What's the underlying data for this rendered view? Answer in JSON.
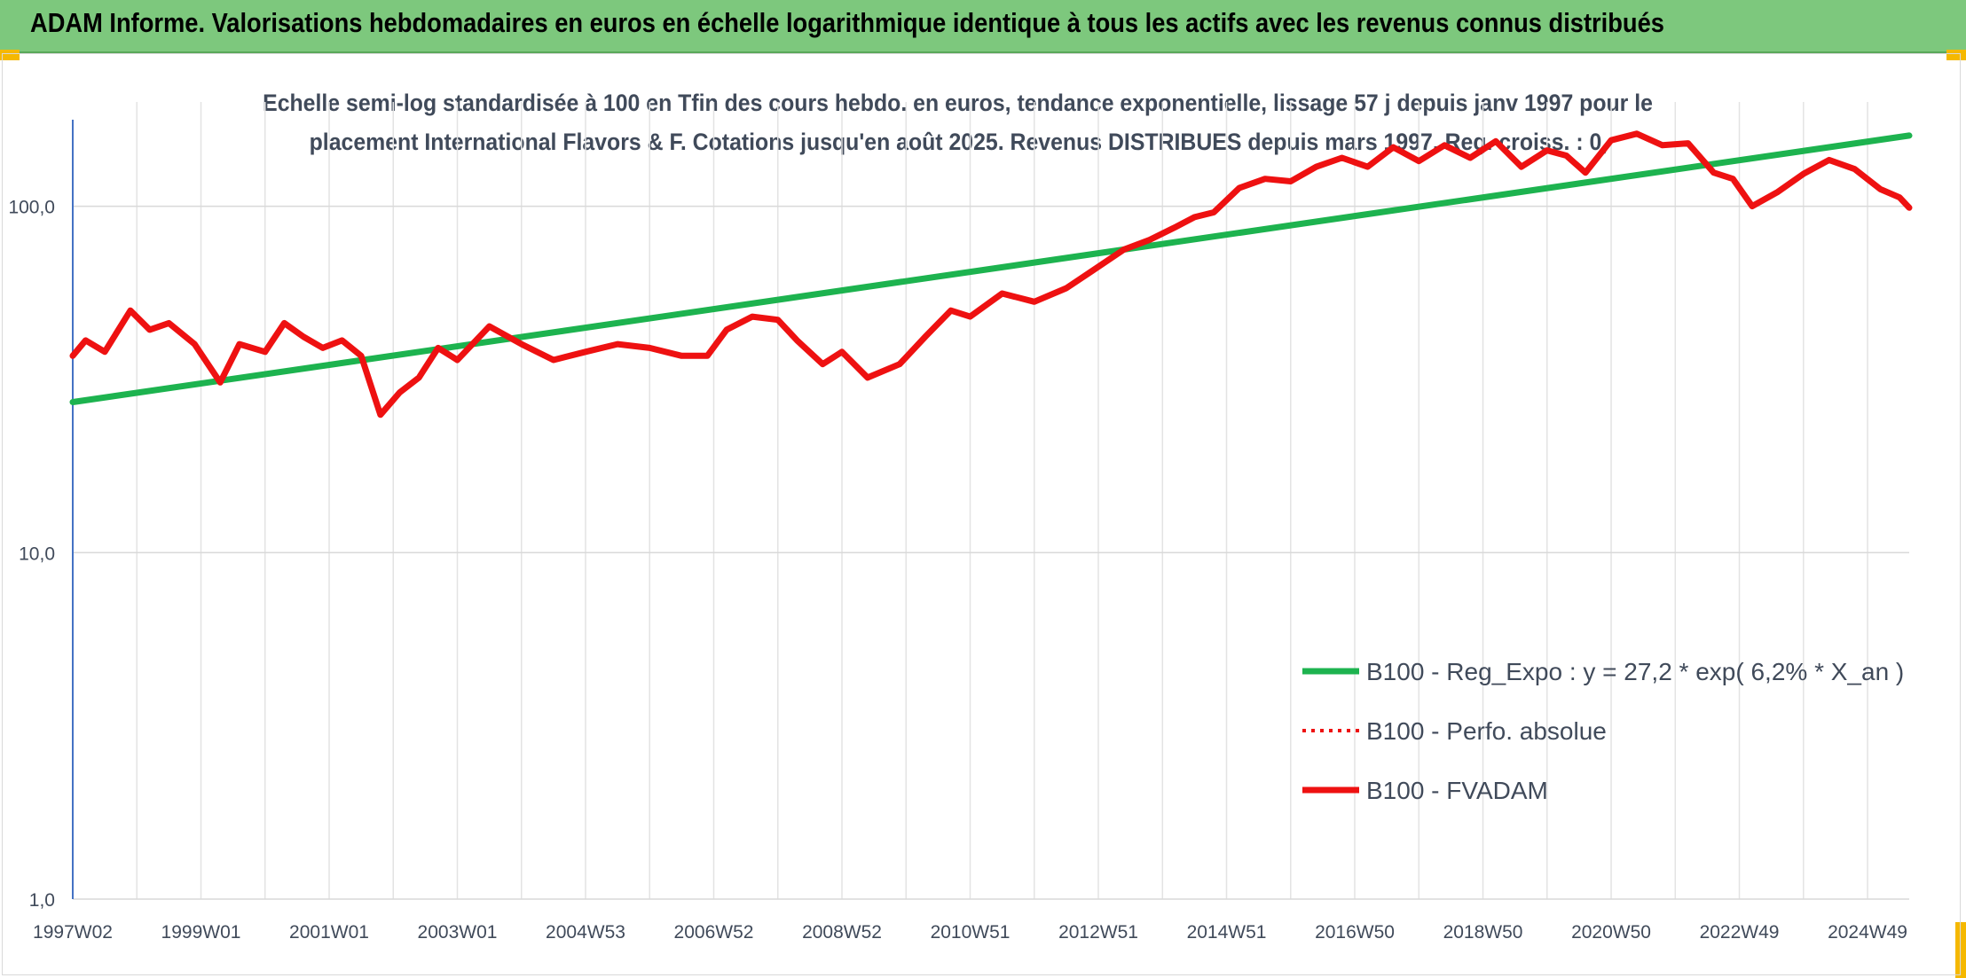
{
  "header": {
    "title": "ADAM Informe. Valorisations hebdomadaires en euros en échelle logarithmique identique à tous les actifs avec les revenus connus distribués"
  },
  "chart_data": {
    "type": "line",
    "title_line1": "Echelle semi-log standardisée à 100 en Tfin des cours hebdo. en euros, tendance exponentielle, lissage 57 j depuis janv 1997 pour le",
    "title_line2": "placement International Flavors & F. Cotations jusqu'en août 2025. Revenus DISTRIBUES depuis mars 1997. Reg. croiss. : 0,",
    "y_scale": "log",
    "ylim": [
      1,
      200
    ],
    "xlim": [
      1997.0,
      2025.65
    ],
    "y_ticks": [
      {
        "value": 1,
        "label": "1,0"
      },
      {
        "value": 10,
        "label": "10,0"
      },
      {
        "value": 100,
        "label": "100,0"
      }
    ],
    "x_ticks": [
      {
        "value": 1997.0,
        "label": "1997W02"
      },
      {
        "value": 1999.0,
        "label": "1999W01"
      },
      {
        "value": 2001.0,
        "label": "2001W01"
      },
      {
        "value": 2003.0,
        "label": "2003W01"
      },
      {
        "value": 2005.0,
        "label": "2004W53"
      },
      {
        "value": 2007.0,
        "label": "2006W52"
      },
      {
        "value": 2009.0,
        "label": "2008W52"
      },
      {
        "value": 2011.0,
        "label": "2010W51"
      },
      {
        "value": 2013.0,
        "label": "2012W51"
      },
      {
        "value": 2015.0,
        "label": "2014W51"
      },
      {
        "value": 2017.0,
        "label": "2016W50"
      },
      {
        "value": 2019.0,
        "label": "2018W50"
      },
      {
        "value": 2021.0,
        "label": "2020W50"
      },
      {
        "value": 2023.0,
        "label": "2022W49"
      },
      {
        "value": 2025.0,
        "label": "2024W49"
      }
    ],
    "grid": true,
    "legend_position": "bottom-right",
    "series": [
      {
        "name": "B100 - Reg_Expo : y = 27,2 * exp( 6,2% *  X_an )",
        "color": "#1db34f",
        "style": "solid",
        "x": [
          1997.0,
          2025.65
        ],
        "y": [
          27.2,
          160
        ]
      },
      {
        "name": "B100 - Perfo. absolue",
        "color": "#ee1111",
        "style": "dotted",
        "x": [],
        "y": []
      },
      {
        "name": "B100 - FVADAM",
        "color": "#ee1111",
        "style": "solid",
        "x": [
          1997.0,
          1997.2,
          1997.5,
          1997.9,
          1998.2,
          1998.5,
          1998.9,
          1999.3,
          1999.6,
          2000.0,
          2000.3,
          2000.6,
          2000.9,
          2001.2,
          2001.5,
          2001.8,
          2002.1,
          2002.4,
          2002.7,
          2003.0,
          2003.5,
          2004.0,
          2004.5,
          2005.0,
          2005.5,
          2006.0,
          2006.5,
          2006.9,
          2007.2,
          2007.6,
          2008.0,
          2008.3,
          2008.7,
          2009.0,
          2009.4,
          2009.9,
          2010.3,
          2010.7,
          2011.0,
          2011.5,
          2012.0,
          2012.5,
          2012.9,
          2013.4,
          2013.8,
          2014.2,
          2014.5,
          2014.8,
          2015.2,
          2015.6,
          2016.0,
          2016.4,
          2016.8,
          2017.2,
          2017.6,
          2018.0,
          2018.4,
          2018.8,
          2019.2,
          2019.6,
          2020.0,
          2020.3,
          2020.6,
          2021.0,
          2021.4,
          2021.8,
          2022.2,
          2022.6,
          2022.9,
          2023.2,
          2023.6,
          2024.0,
          2024.4,
          2024.8,
          2025.2,
          2025.5,
          2025.65
        ],
        "y": [
          37,
          41,
          38,
          50,
          44,
          46,
          40,
          31,
          40,
          38,
          46,
          42,
          39,
          41,
          37,
          25,
          29,
          32,
          39,
          36,
          45,
          40,
          36,
          38,
          40,
          39,
          37,
          37,
          44,
          48,
          47,
          41,
          35,
          38,
          32,
          35,
          42,
          50,
          48,
          56,
          53,
          58,
          65,
          75,
          80,
          87,
          93,
          96,
          113,
          120,
          118,
          130,
          138,
          130,
          148,
          135,
          150,
          138,
          154,
          130,
          145,
          140,
          125,
          155,
          162,
          150,
          152,
          125,
          120,
          100,
          110,
          124,
          136,
          128,
          112,
          106,
          99
        ]
      }
    ]
  }
}
